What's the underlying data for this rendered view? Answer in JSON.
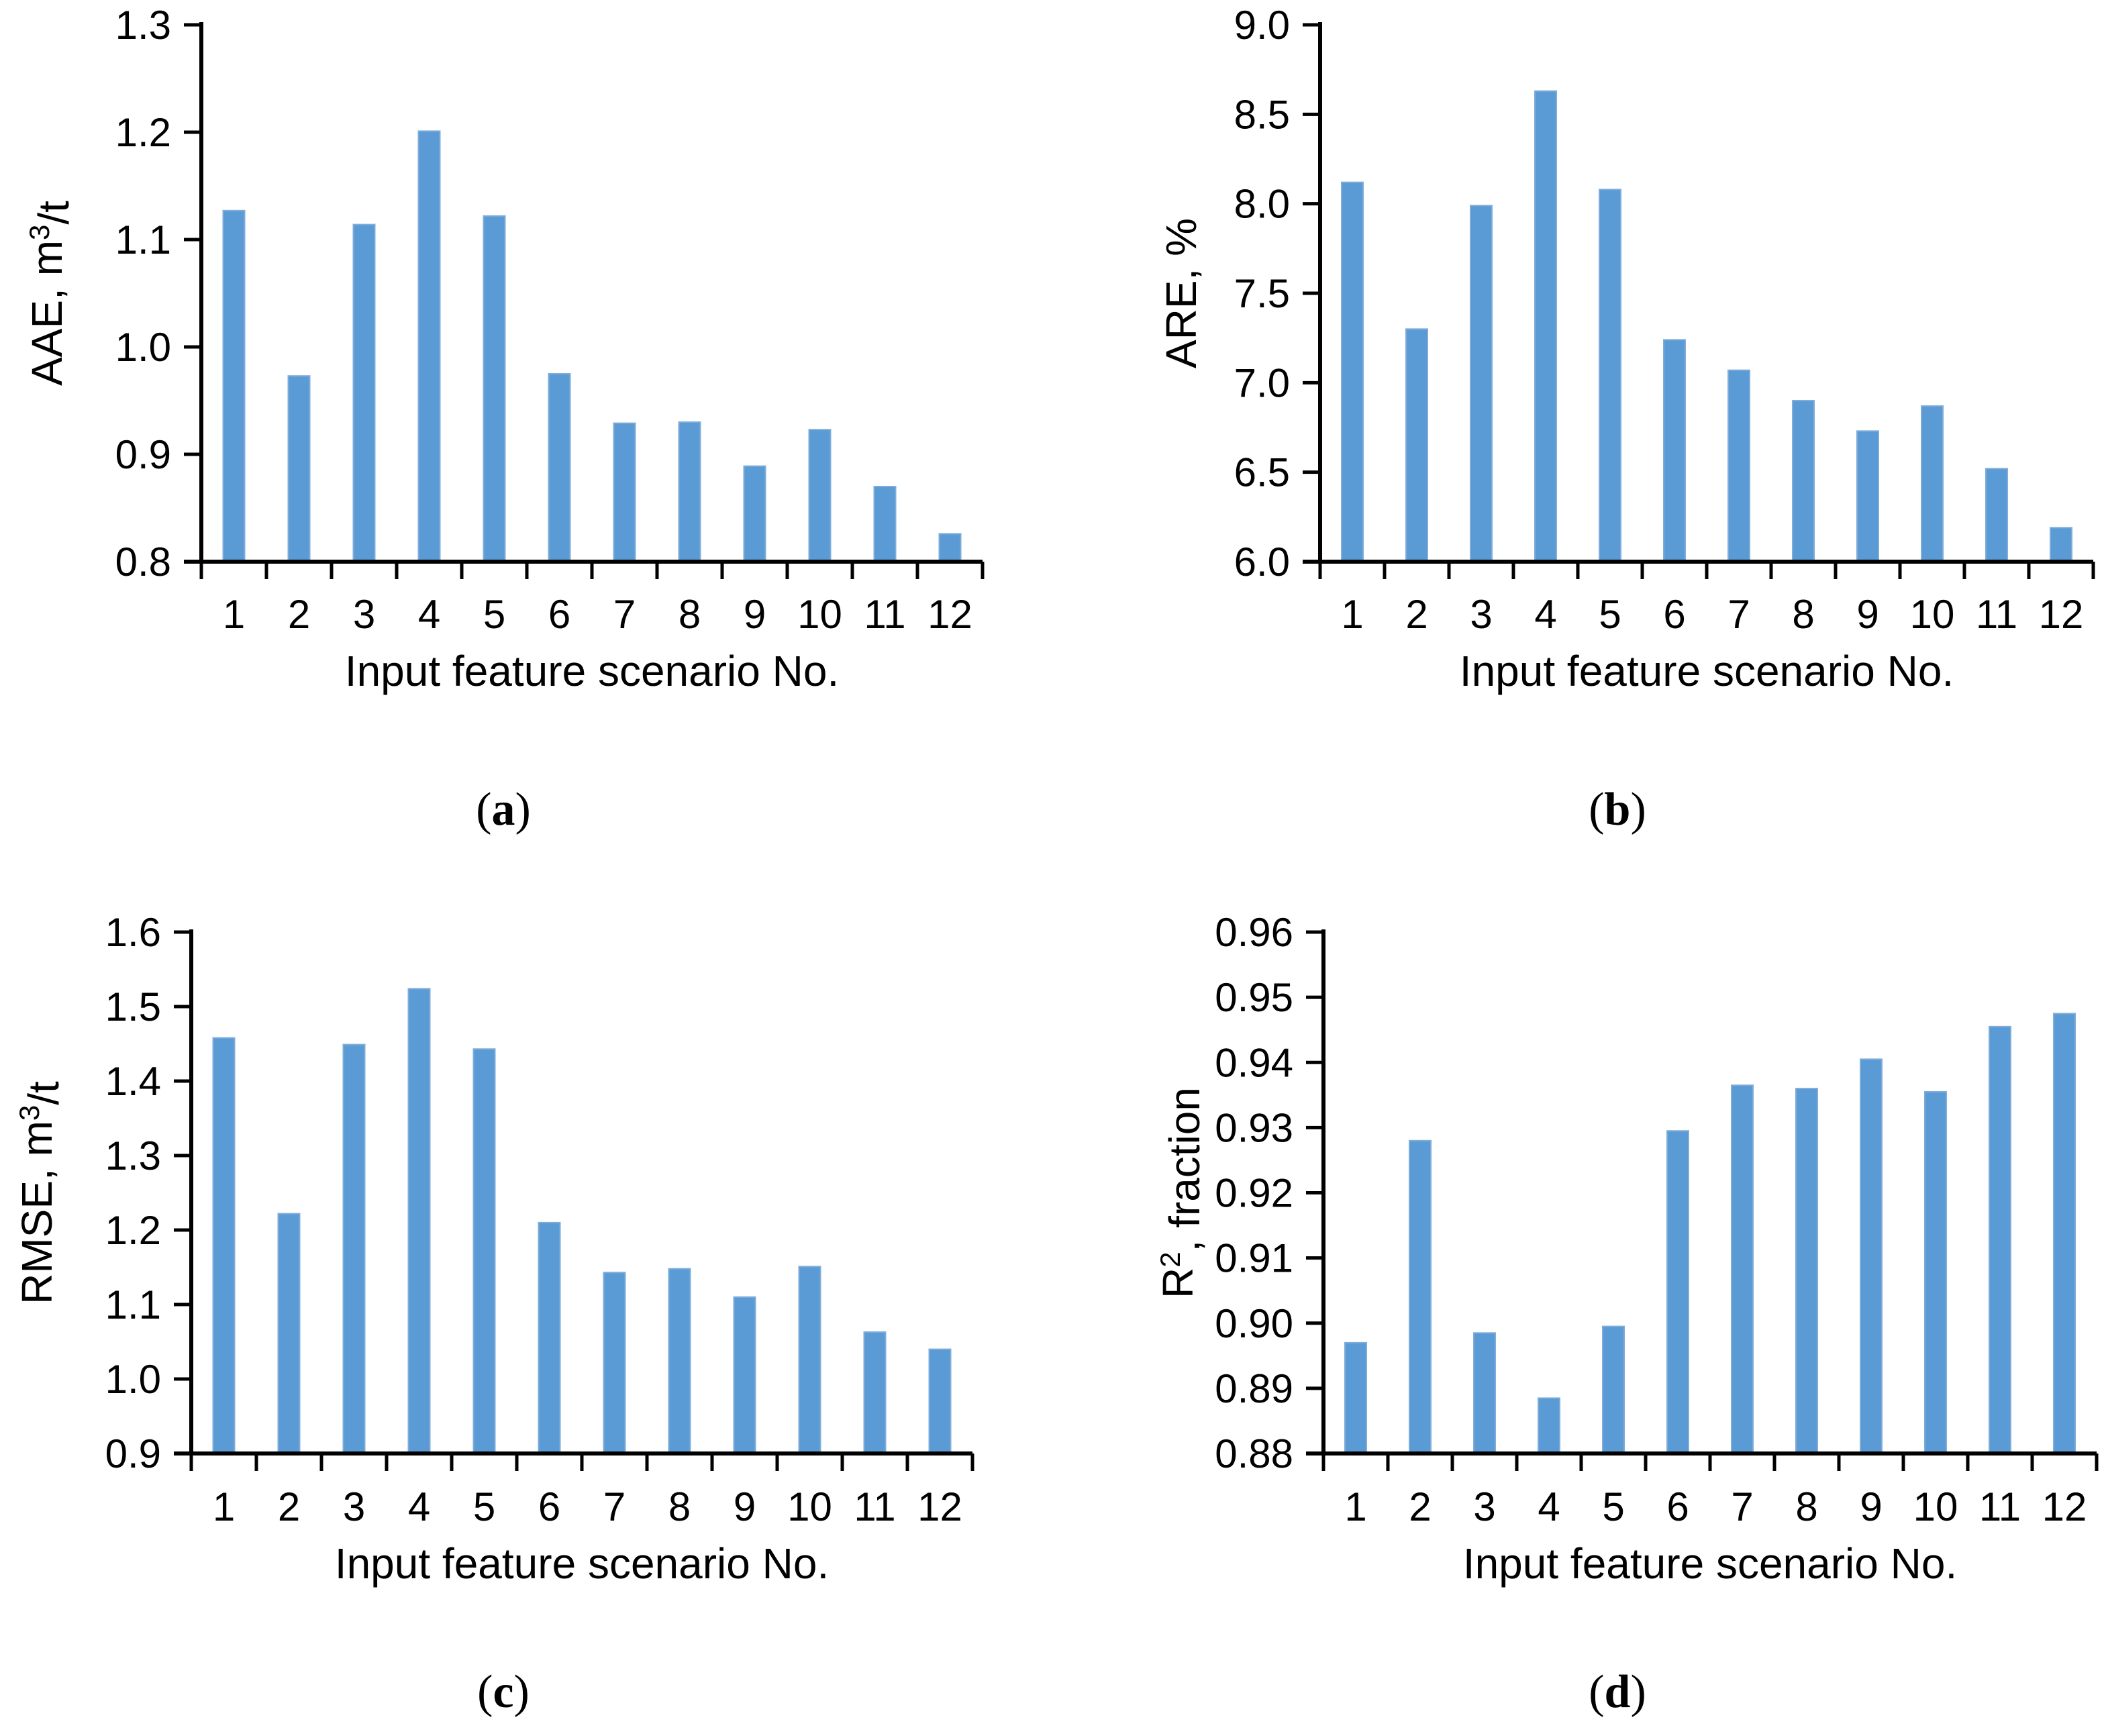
{
  "figure": {
    "background": "#ffffff",
    "bar_color": "#5B9BD5",
    "bar_edge_color": "#7FACD9",
    "axis_color": "#000000",
    "text_color": "#000000"
  },
  "chart_data": [
    {
      "type": "bar",
      "panel": "a",
      "caption": "(a)",
      "xlabel": "Input feature scenario No.",
      "ylabel": "AAE, m³/t",
      "ylabel_parts": [
        {
          "t": "AAE, m"
        },
        {
          "t": "3",
          "sup": true
        },
        {
          "t": "/t"
        }
      ],
      "categories": [
        "1",
        "2",
        "3",
        "4",
        "5",
        "6",
        "7",
        "8",
        "9",
        "10",
        "11",
        "12"
      ],
      "values": [
        1.127,
        0.973,
        1.114,
        1.201,
        1.122,
        0.975,
        0.929,
        0.93,
        0.889,
        0.923,
        0.87,
        0.826
      ],
      "ylim": [
        0.8,
        1.3
      ],
      "yticks": [
        "0.8",
        "0.9",
        "1.0",
        "1.1",
        "1.2",
        "1.3"
      ],
      "grid": false,
      "legend": null
    },
    {
      "type": "bar",
      "panel": "b",
      "caption": "(b)",
      "xlabel": "Input feature scenario No.",
      "ylabel": "ARE, %",
      "ylabel_parts": [
        {
          "t": "ARE, %"
        }
      ],
      "categories": [
        "1",
        "2",
        "3",
        "4",
        "5",
        "6",
        "7",
        "8",
        "9",
        "10",
        "11",
        "12"
      ],
      "values": [
        8.12,
        7.3,
        7.99,
        8.63,
        8.08,
        7.24,
        7.07,
        6.9,
        6.73,
        6.87,
        6.52,
        6.19
      ],
      "ylim": [
        6.0,
        9.0
      ],
      "yticks": [
        "6.0",
        "6.5",
        "7.0",
        "7.5",
        "8.0",
        "8.5",
        "9.0"
      ],
      "grid": false,
      "legend": null
    },
    {
      "type": "bar",
      "panel": "c",
      "caption": "(c)",
      "xlabel": "Input feature scenario No.",
      "ylabel": "RMSE, m³/t",
      "ylabel_parts": [
        {
          "t": "RMSE, m"
        },
        {
          "t": "3",
          "sup": true
        },
        {
          "t": "/t"
        }
      ],
      "categories": [
        "1",
        "2",
        "3",
        "4",
        "5",
        "6",
        "7",
        "8",
        "9",
        "10",
        "11",
        "12"
      ],
      "values": [
        1.458,
        1.222,
        1.449,
        1.524,
        1.443,
        1.21,
        1.143,
        1.148,
        1.11,
        1.151,
        1.063,
        1.04
      ],
      "ylim": [
        0.9,
        1.6
      ],
      "yticks": [
        "0.9",
        "1.0",
        "1.1",
        "1.2",
        "1.3",
        "1.4",
        "1.5",
        "1.6"
      ],
      "grid": false,
      "legend": null
    },
    {
      "type": "bar",
      "panel": "d",
      "caption": "(d)",
      "xlabel": "Input feature scenario No.",
      "ylabel": "R², fraction",
      "ylabel_parts": [
        {
          "t": "R"
        },
        {
          "t": "2",
          "sup": true
        },
        {
          "t": ", fraction"
        }
      ],
      "categories": [
        "1",
        "2",
        "3",
        "4",
        "5",
        "6",
        "7",
        "8",
        "9",
        "10",
        "11",
        "12"
      ],
      "values": [
        0.897,
        0.928,
        0.8985,
        0.8885,
        0.8995,
        0.9295,
        0.9365,
        0.936,
        0.9405,
        0.9355,
        0.9455,
        0.9475
      ],
      "ylim": [
        0.88,
        0.96
      ],
      "yticks": [
        "0.88",
        "0.89",
        "0.90",
        "0.91",
        "0.92",
        "0.93",
        "0.94",
        "0.95",
        "0.96"
      ],
      "grid": false,
      "legend": null
    }
  ]
}
